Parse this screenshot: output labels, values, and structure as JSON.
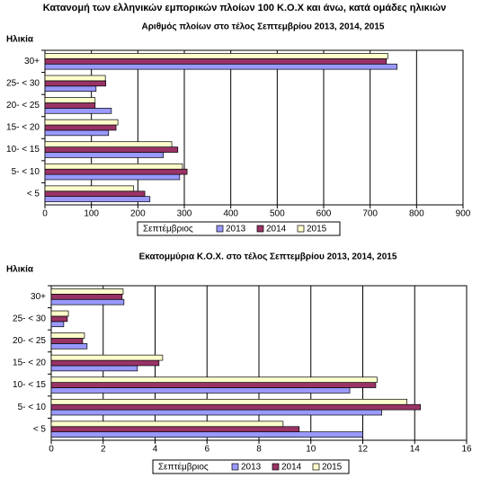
{
  "title": "Κατανομή των ελληνικών εμπορικών πλοίων 100 Κ.Ο.Χ και άνω, κατά ομάδες ηλικιών",
  "chart_data": [
    {
      "type": "bar",
      "orientation": "horizontal",
      "title": "Αριθμός πλοίων στο τέλος Σεπτεμβρίου 2013, 2014, 2015",
      "y_label": "Ηλικία",
      "legend_title": "Σεπτέμβριος",
      "categories": [
        "30+",
        "25- < 30",
        "20- < 25",
        "15- < 20",
        "10- < 15",
        "5- < 10",
        "< 5"
      ],
      "series": [
        {
          "name": "2013",
          "color": "#9999ff",
          "values": [
            758,
            110,
            143,
            137,
            255,
            290,
            226
          ]
        },
        {
          "name": "2014",
          "color": "#993366",
          "values": [
            735,
            131,
            108,
            153,
            286,
            306,
            215
          ]
        },
        {
          "name": "2015",
          "color": "#ffffcc",
          "values": [
            738,
            130,
            108,
            157,
            273,
            296,
            191
          ]
        }
      ],
      "xlim": [
        0,
        900
      ],
      "xticks": [
        0,
        100,
        200,
        300,
        400,
        500,
        600,
        700,
        800,
        900
      ],
      "grid": true
    },
    {
      "type": "bar",
      "orientation": "horizontal",
      "title": "Εκατομμύρια Κ.Ο.Χ. στο τέλος Σεπτεμβρίου 2013, 2014, 2015",
      "y_label": "Ηλικία",
      "legend_title": "Σεπτέμβριος",
      "categories": [
        "30+",
        "25- < 30",
        "20- < 25",
        "15- < 20",
        "10- < 15",
        "5- < 10",
        "< 5"
      ],
      "series": [
        {
          "name": "2013",
          "color": "#9999ff",
          "values": [
            2.8,
            0.48,
            1.38,
            3.32,
            11.5,
            12.73,
            12.0
          ]
        },
        {
          "name": "2014",
          "color": "#993366",
          "values": [
            2.73,
            0.62,
            1.21,
            4.15,
            12.5,
            14.22,
            9.55
          ]
        },
        {
          "name": "2015",
          "color": "#ffffcc",
          "values": [
            2.77,
            0.66,
            1.28,
            4.29,
            12.55,
            13.7,
            8.93
          ]
        }
      ],
      "xlim": [
        0,
        16
      ],
      "xticks": [
        0,
        2,
        4,
        6,
        8,
        10,
        12,
        14,
        16
      ],
      "grid": true
    }
  ]
}
